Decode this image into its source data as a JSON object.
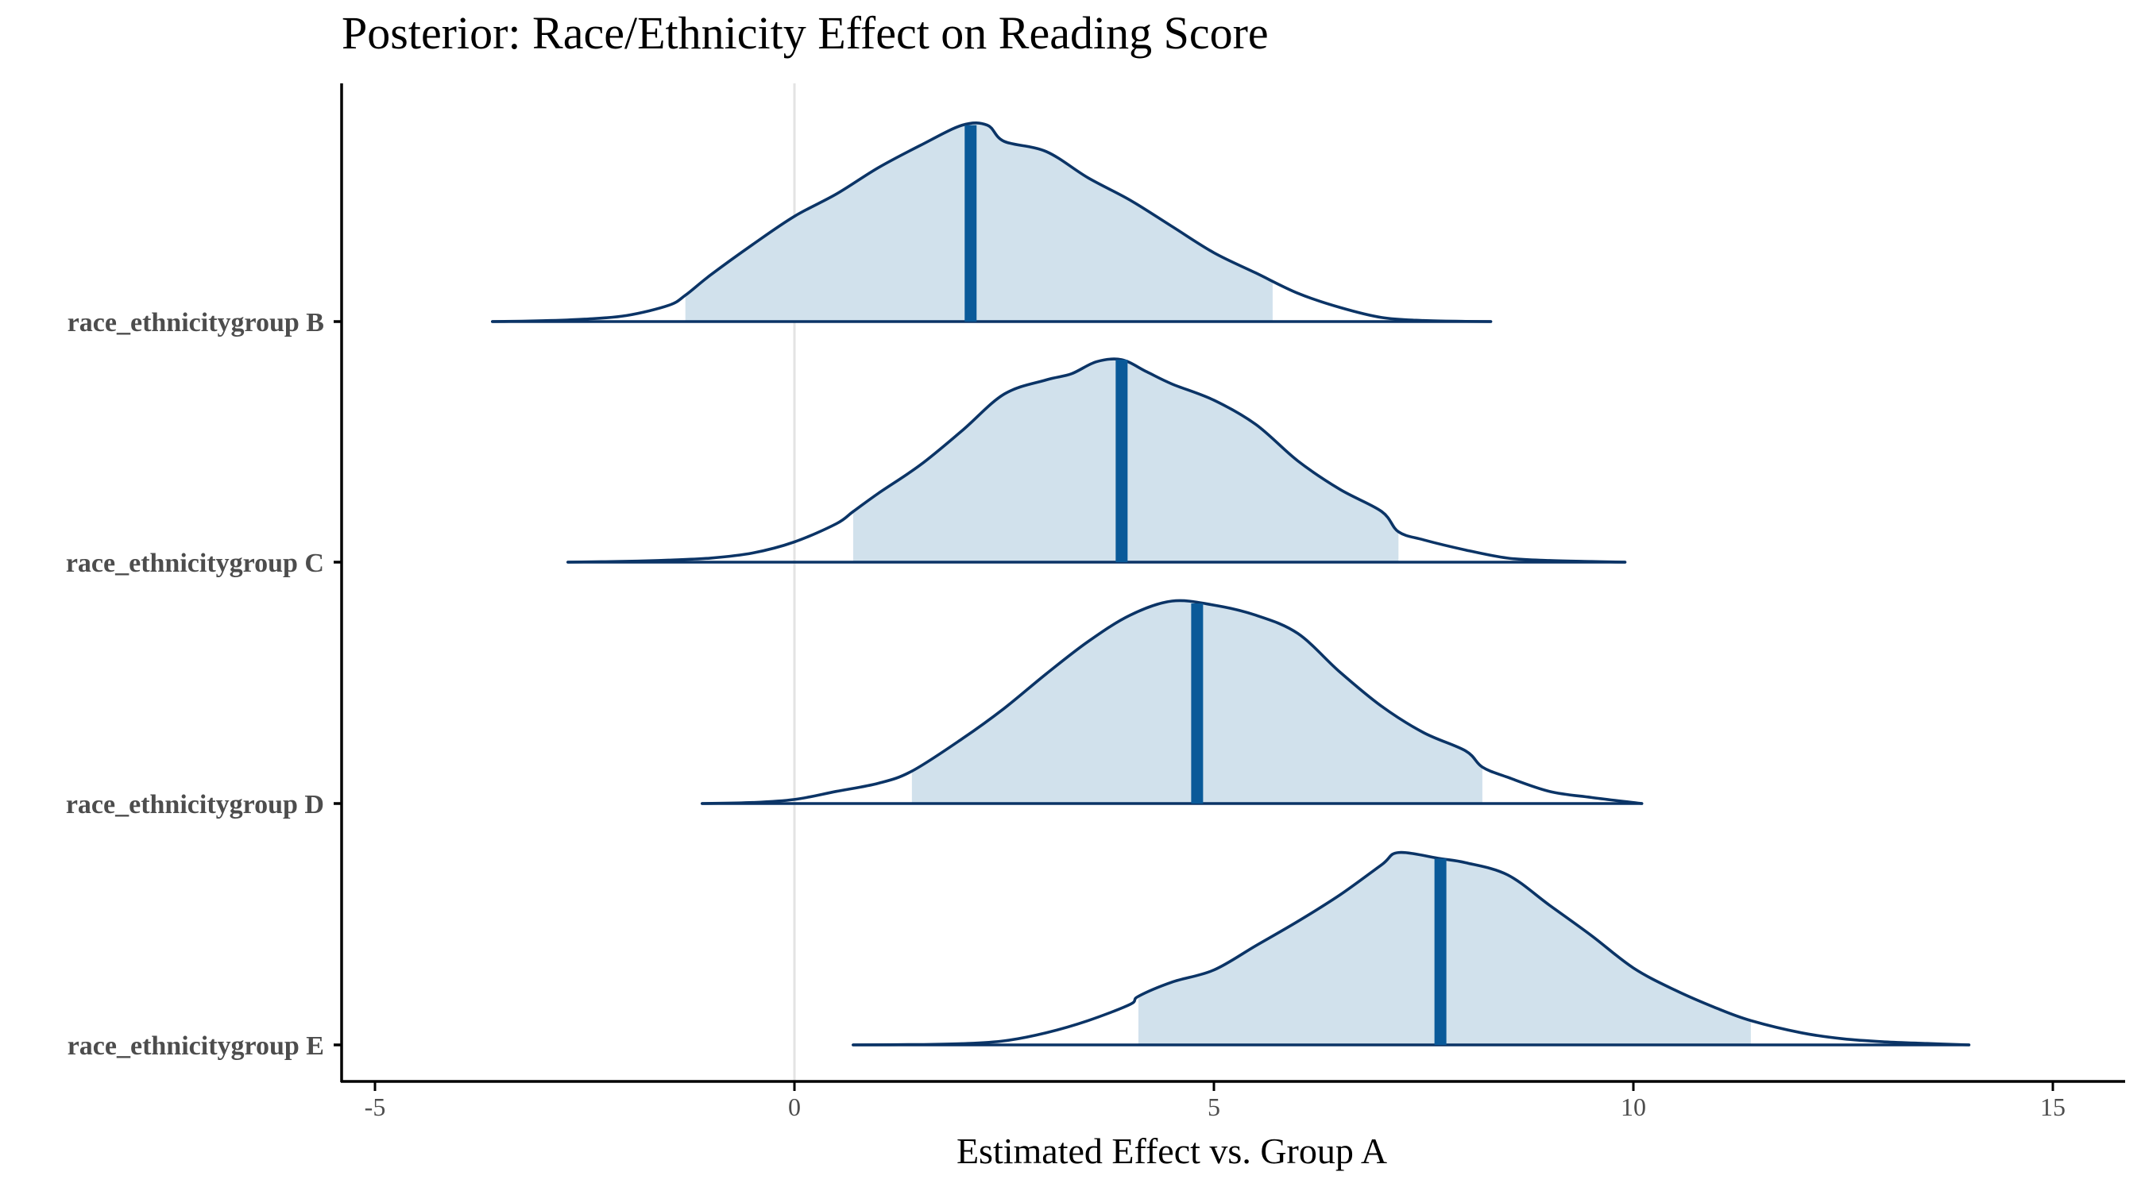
{
  "chart_data": {
    "type": "ridgeline",
    "title": "Posterior: Race/Ethnicity Effect on Reading Score",
    "xlabel": "Estimated Effect vs. Group A",
    "ylabel": "",
    "xlim": [
      -5.2,
      15.7
    ],
    "xticks": [
      -5,
      0,
      5,
      10,
      15
    ],
    "xtick_labels": [
      "-5",
      "0",
      "5",
      "10",
      "15"
    ],
    "reference_line_x": 0,
    "grid": false,
    "legend": "none",
    "colors": {
      "outline": "#0b3466",
      "fill": "#d1e1ec",
      "median": "#0a5a99",
      "reference": "#e3e3e3",
      "axis": "#000000"
    },
    "series": [
      {
        "name": "race_ethnicitygroup B",
        "range": [
          -3.6,
          8.3
        ],
        "interval": [
          -1.3,
          5.7
        ],
        "median": 2.1,
        "density_x": [
          -3.6,
          -3.0,
          -2.5,
          -2.0,
          -1.5,
          -1.3,
          -1.0,
          -0.5,
          0.0,
          0.5,
          1.0,
          1.5,
          2.0,
          2.3,
          2.5,
          3.0,
          3.5,
          4.0,
          4.5,
          5.0,
          5.5,
          6.0,
          6.5,
          7.0,
          7.5,
          8.0,
          8.3
        ],
        "density_y": [
          0.0,
          0.004,
          0.012,
          0.03,
          0.08,
          0.13,
          0.23,
          0.38,
          0.52,
          0.63,
          0.76,
          0.87,
          0.97,
          0.97,
          0.89,
          0.84,
          0.71,
          0.6,
          0.47,
          0.34,
          0.24,
          0.14,
          0.07,
          0.02,
          0.005,
          0.001,
          0.0
        ]
      },
      {
        "name": "race_ethnicitygroup C",
        "range": [
          -2.7,
          9.9
        ],
        "interval": [
          0.7,
          7.2
        ],
        "median": 3.9,
        "density_x": [
          -2.7,
          -2.0,
          -1.5,
          -1.0,
          -0.5,
          0.0,
          0.5,
          0.7,
          1.0,
          1.5,
          2.0,
          2.5,
          3.0,
          3.3,
          3.6,
          3.9,
          4.2,
          4.5,
          5.0,
          5.5,
          6.0,
          6.5,
          7.0,
          7.2,
          7.5,
          8.0,
          8.5,
          9.0,
          9.5,
          9.9
        ],
        "density_y": [
          0.0,
          0.004,
          0.01,
          0.02,
          0.045,
          0.1,
          0.19,
          0.25,
          0.34,
          0.48,
          0.65,
          0.83,
          0.9,
          0.93,
          0.99,
          1.0,
          0.94,
          0.88,
          0.8,
          0.68,
          0.5,
          0.36,
          0.25,
          0.15,
          0.11,
          0.06,
          0.02,
          0.008,
          0.003,
          0.0
        ]
      },
      {
        "name": "race_ethnicitygroup D",
        "range": [
          -1.1,
          10.1
        ],
        "interval": [
          1.4,
          8.2
        ],
        "median": 4.8,
        "density_x": [
          -1.1,
          -0.5,
          0.0,
          0.5,
          1.0,
          1.4,
          2.0,
          2.5,
          3.0,
          3.5,
          4.0,
          4.5,
          5.0,
          5.5,
          6.0,
          6.5,
          7.0,
          7.5,
          8.0,
          8.2,
          8.5,
          9.0,
          9.5,
          10.1
        ],
        "density_y": [
          0.0,
          0.005,
          0.02,
          0.06,
          0.1,
          0.16,
          0.32,
          0.47,
          0.64,
          0.8,
          0.93,
          1.0,
          0.98,
          0.93,
          0.84,
          0.65,
          0.48,
          0.35,
          0.26,
          0.18,
          0.13,
          0.06,
          0.03,
          0.0
        ]
      },
      {
        "name": "race_ethnicitygroup E",
        "range": [
          0.7,
          14.0
        ],
        "interval": [
          4.1,
          11.4
        ],
        "median": 7.7,
        "density_x": [
          0.7,
          1.5,
          2.0,
          2.5,
          3.0,
          3.5,
          4.0,
          4.1,
          4.5,
          5.0,
          5.5,
          6.0,
          6.5,
          7.0,
          7.2,
          7.7,
          8.0,
          8.5,
          9.0,
          9.5,
          10.0,
          10.5,
          11.0,
          11.4,
          12.0,
          12.5,
          13.0,
          13.5,
          14.0
        ],
        "density_y": [
          0.0,
          0.002,
          0.006,
          0.02,
          0.06,
          0.12,
          0.2,
          0.24,
          0.31,
          0.37,
          0.49,
          0.61,
          0.74,
          0.89,
          0.95,
          0.92,
          0.9,
          0.84,
          0.69,
          0.54,
          0.38,
          0.27,
          0.18,
          0.12,
          0.06,
          0.03,
          0.015,
          0.007,
          0.0
        ]
      }
    ]
  }
}
